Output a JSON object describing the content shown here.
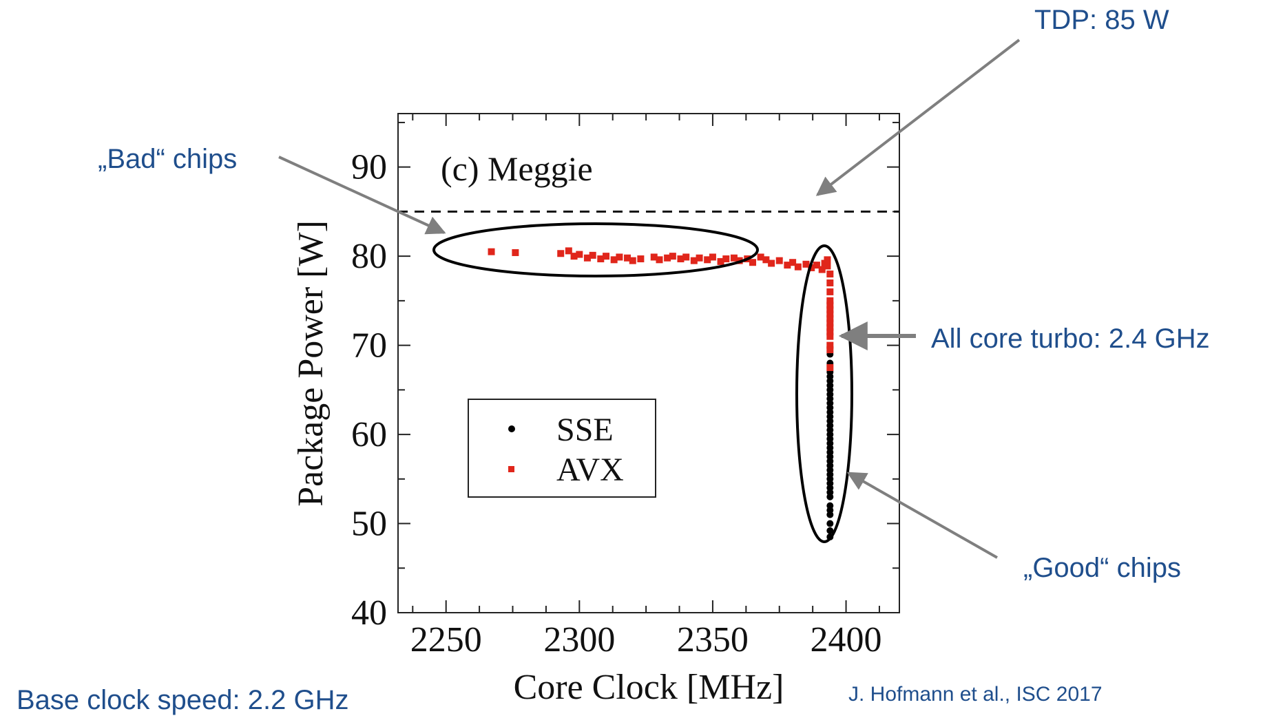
{
  "annotations": {
    "tdp": "TDP: 85 W",
    "bad_chips": "„Bad“ chips",
    "all_core_turbo": "All core turbo: 2.4 GHz",
    "good_chips": "„Good“ chips",
    "base_clock": "Base clock speed: 2.2 GHz",
    "citation": "J. Hofmann et al., ISC 2017"
  },
  "colors": {
    "annotation_text": "#1f4e8c",
    "arrow": "#7f7f7f",
    "sse": "#000000",
    "avx": "#e0261b"
  },
  "chart_data": {
    "type": "scatter",
    "title": "(c) Meggie",
    "xlabel": "Core Clock [MHz]",
    "ylabel": "Package Power [W]",
    "xlim": [
      2232,
      2420
    ],
    "ylim": [
      40,
      96
    ],
    "xticks": [
      2250,
      2300,
      2350,
      2400
    ],
    "yticks": [
      40,
      50,
      60,
      70,
      80,
      90
    ],
    "minor_step_x": 12.5,
    "minor_step_y": 5,
    "reference_line": {
      "y": 85,
      "style": "dashed",
      "label": "TDP: 85 W"
    },
    "legend": {
      "position": "center-left",
      "entries": [
        "SSE",
        "AVX"
      ]
    },
    "series": [
      {
        "name": "SSE",
        "marker": "circle",
        "color": "#000000",
        "x": [
          2394,
          2394,
          2394,
          2394,
          2394,
          2394,
          2394,
          2394,
          2394,
          2394,
          2394,
          2394,
          2394,
          2394,
          2394,
          2394,
          2394,
          2394,
          2394,
          2394,
          2394,
          2394,
          2394,
          2394,
          2394,
          2394,
          2394,
          2394,
          2394,
          2394,
          2394,
          2394,
          2394,
          2394,
          2394,
          2394,
          2394
        ],
        "y": [
          48.5,
          49.2,
          50.0,
          51.0,
          51.5,
          52.0,
          53.0,
          53.5,
          54.0,
          54.5,
          55.0,
          55.5,
          56.0,
          56.5,
          57.0,
          57.5,
          58.0,
          58.5,
          59.0,
          59.5,
          60.0,
          60.5,
          61.0,
          61.5,
          62.0,
          62.5,
          63.0,
          63.5,
          64.0,
          64.5,
          65.0,
          65.5,
          66.0,
          66.5,
          67.0,
          68.0,
          69.0
        ]
      },
      {
        "name": "AVX",
        "marker": "square",
        "color": "#e0261b",
        "x": [
          2267,
          2276,
          2293,
          2296,
          2298,
          2300,
          2303,
          2305,
          2308,
          2310,
          2313,
          2315,
          2318,
          2320,
          2323,
          2328,
          2330,
          2333,
          2335,
          2338,
          2340,
          2343,
          2345,
          2348,
          2350,
          2353,
          2355,
          2358,
          2360,
          2363,
          2365,
          2368,
          2370,
          2372,
          2375,
          2378,
          2380,
          2382,
          2385,
          2387,
          2389,
          2391,
          2392,
          2393,
          2393,
          2394,
          2394,
          2394,
          2394,
          2394,
          2394,
          2394,
          2394,
          2394,
          2394,
          2394,
          2394,
          2394,
          2394,
          2394
        ],
        "y": [
          80.5,
          80.4,
          80.3,
          80.6,
          80.0,
          80.2,
          79.8,
          80.1,
          79.7,
          80.0,
          79.6,
          79.9,
          79.8,
          79.5,
          79.7,
          79.9,
          79.6,
          79.8,
          80.0,
          79.7,
          79.9,
          79.5,
          79.8,
          79.6,
          79.9,
          79.4,
          79.7,
          79.8,
          79.5,
          79.7,
          79.3,
          79.9,
          79.6,
          79.2,
          79.5,
          79.0,
          79.3,
          78.8,
          79.1,
          78.7,
          79.0,
          78.5,
          79.2,
          78.9,
          79.6,
          78.0,
          77.0,
          76.0,
          75.0,
          74.5,
          74.0,
          73.5,
          73.0,
          72.5,
          72.0,
          71.5,
          71.0,
          70.0,
          69.5,
          67.5
        ]
      }
    ]
  }
}
